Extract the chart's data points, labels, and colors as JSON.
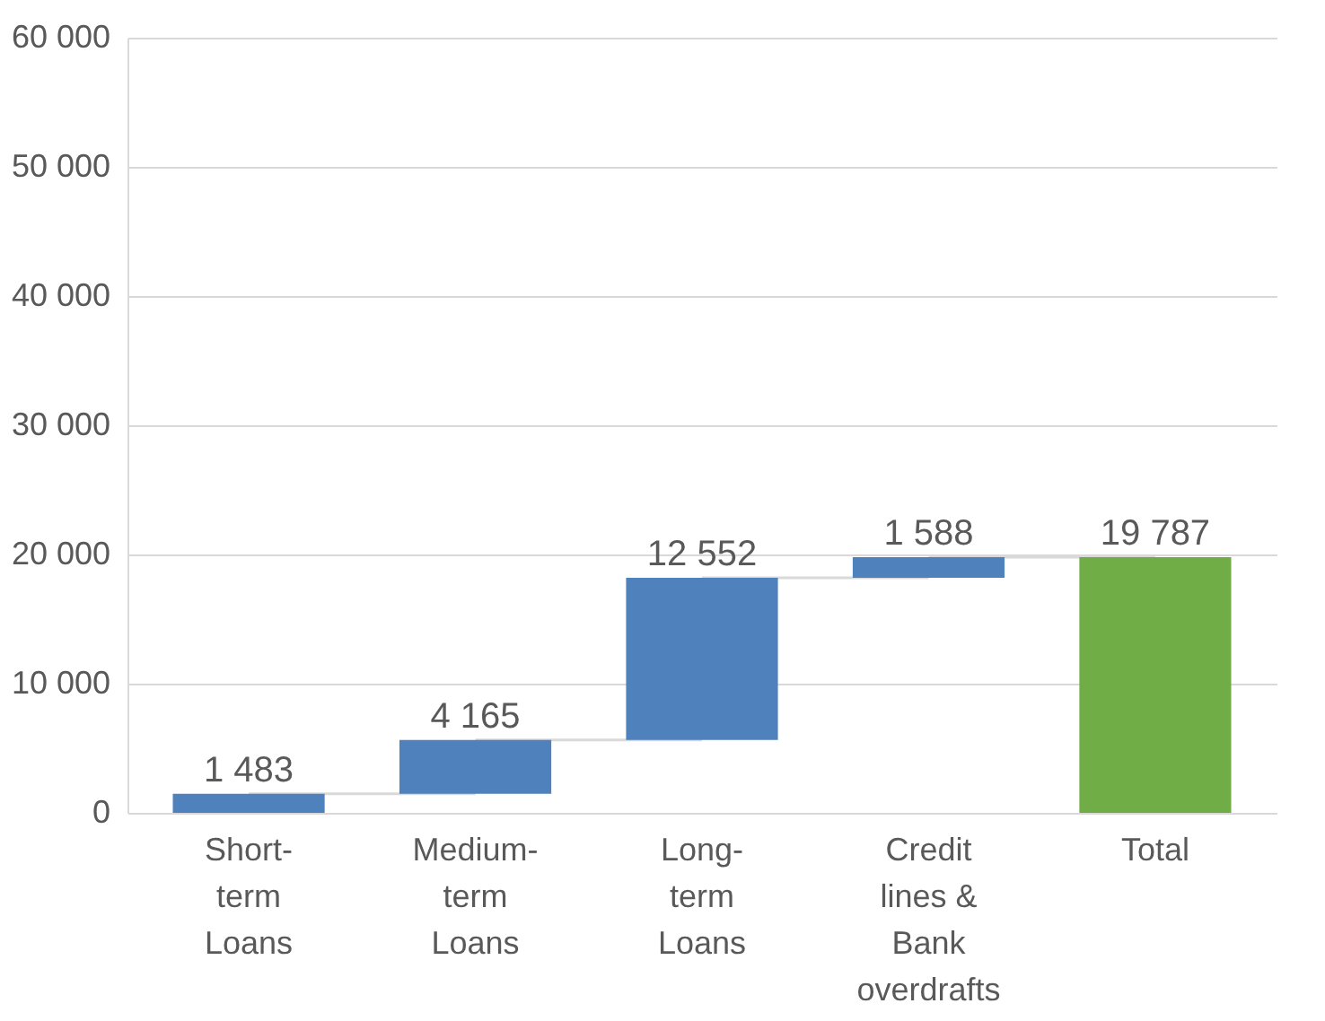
{
  "chart_data": {
    "type": "bar",
    "categories": [
      "Short-term Loans",
      "Medium-term Loans",
      "Long-term Loans",
      "Credit lines & Bank overdrafts",
      "Total"
    ],
    "values": [
      1483,
      4165,
      12552,
      1588,
      19787
    ],
    "base": [
      0,
      1483,
      5648,
      18200,
      0
    ],
    "colors": [
      "#4f81bd",
      "#4f81bd",
      "#4f81bd",
      "#4f81bd",
      "#70ad47"
    ],
    "value_labels": [
      "1 483",
      "4 165",
      "12 552",
      "1 588",
      "19 787"
    ],
    "ylim": [
      0,
      60000
    ],
    "yticks": [
      {
        "value": 0,
        "label": "0"
      },
      {
        "value": 10000,
        "label": "10 000"
      },
      {
        "value": 20000,
        "label": "20 000"
      },
      {
        "value": 30000,
        "label": "30 000"
      },
      {
        "value": 40000,
        "label": "40 000"
      },
      {
        "value": 50000,
        "label": "50 000"
      },
      {
        "value": 60000,
        "label": "60 000"
      }
    ],
    "grid": "y"
  }
}
